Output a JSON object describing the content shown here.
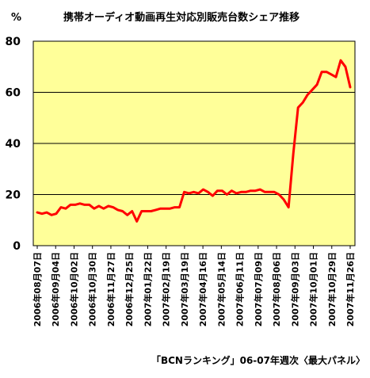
{
  "chart_data": {
    "type": "line",
    "title": "携帯オーディオ動画再生対応別販売台数シェア推移",
    "ylabel": "%",
    "source": "「BCNランキング」06-07年週次〈最大パネル〉",
    "ylim": [
      0,
      80
    ],
    "yticks": [
      0,
      20,
      40,
      60,
      80
    ],
    "grid": true,
    "colors": {
      "plot_bg": "#ffff99",
      "line": "#ff0000",
      "grid": "#000000"
    },
    "xtick_labels": [
      "2006年08月07日",
      "2006年09月04日",
      "2006年10月02日",
      "2006年10月30日",
      "2006年11月27日",
      "2006年12月25日",
      "2007年01月22日",
      "2007年02月19日",
      "2007年03月19日",
      "2007年04月16日",
      "2007年05月14日",
      "2007年06月11日",
      "2007年07月09日",
      "2007年08月06日",
      "2007年09月03日",
      "2007年10月01日",
      "2007年10月29日",
      "2007年11月26日"
    ],
    "series": [
      {
        "name": "",
        "values": [
          13,
          12.5,
          13,
          12,
          12.5,
          15,
          14.5,
          16,
          16,
          16.5,
          16,
          16,
          14.5,
          15.5,
          14.5,
          15.5,
          15,
          14,
          13.5,
          12,
          13.5,
          9.5,
          13.5,
          13.5,
          13.5,
          14,
          14.5,
          14.5,
          14.5,
          15,
          15,
          21,
          20.5,
          21,
          20.5,
          22,
          21,
          19.5,
          21.5,
          21.5,
          20,
          21.5,
          20.5,
          21,
          21,
          21.5,
          21.5,
          22,
          21,
          21,
          21,
          20,
          18,
          15,
          36,
          54,
          56,
          59,
          61,
          63,
          68,
          68,
          67,
          66,
          72.5,
          70,
          62
        ]
      }
    ]
  }
}
